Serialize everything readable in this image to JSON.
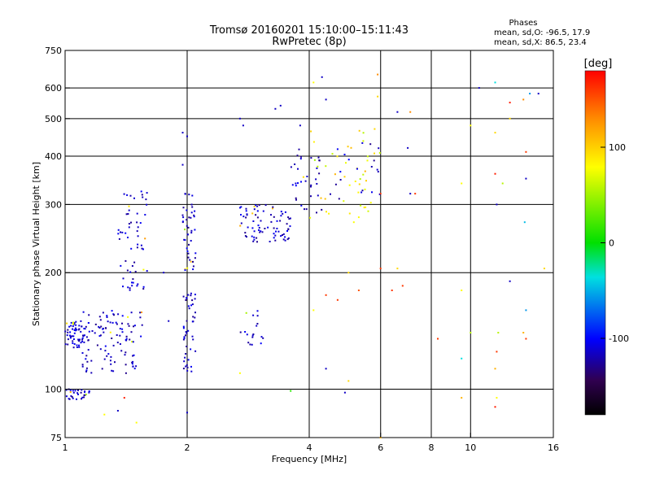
{
  "chart_data": {
    "type": "scatter",
    "title": "Tromsø 20160201 15:10:00–15:11:43",
    "subtitle": "RwPretec (8p)",
    "xlabel": "Frequency [MHz]",
    "ylabel": "Stationary phase Virtual Height [km]",
    "x_scale": "log",
    "y_scale": "log",
    "xlim": [
      1,
      16
    ],
    "ylim": [
      75,
      750
    ],
    "x_ticks": [
      1,
      2,
      4,
      6,
      8,
      10,
      16
    ],
    "x_tick_labels": [
      "1",
      "2",
      "4",
      "6",
      "8",
      "10",
      "16"
    ],
    "x_grid": [
      2,
      4,
      6,
      8,
      10
    ],
    "y_ticks": [
      75,
      100,
      200,
      300,
      400,
      500,
      600,
      750
    ],
    "y_tick_labels": [
      "75",
      "100",
      "200",
      "300",
      "400",
      "500",
      "600",
      "750"
    ],
    "y_grid": [
      100,
      200,
      300,
      400,
      500,
      600
    ],
    "grid": true,
    "phases_box": {
      "title": "Phases",
      "line1": "mean, sd,O:  -96.5, 17.9",
      "line2": "mean, sd,X:  86.5, 23.4"
    },
    "colorbar": {
      "label": "[deg]",
      "range": [
        -180,
        180
      ],
      "ticks": [
        100,
        0,
        -100
      ],
      "tick_labels": [
        "100",
        "0",
        "-100"
      ],
      "colors": [
        "#ff0000",
        "#ff8c00",
        "#ffff00",
        "#00e000",
        "#00e0e0",
        "#0000ff",
        "#300050",
        "#000000"
      ]
    },
    "clusters": [
      {
        "x": [
          1.0,
          1.12
        ],
        "y": [
          128,
          150
        ],
        "phase": -100,
        "n": 60
      },
      {
        "x": [
          1.0,
          1.15
        ],
        "y": [
          94,
          100
        ],
        "phase": -100,
        "n": 30
      },
      {
        "x": [
          1.1,
          1.55
        ],
        "y": [
          110,
          160
        ],
        "phase": -100,
        "n": 110
      },
      {
        "x": [
          1.35,
          1.6
        ],
        "y": [
          180,
          330
        ],
        "phase": -100,
        "n": 60
      },
      {
        "x": [
          1.95,
          2.1
        ],
        "y": [
          110,
          180
        ],
        "phase": -100,
        "n": 45
      },
      {
        "x": [
          1.95,
          2.1
        ],
        "y": [
          200,
          320
        ],
        "phase": -100,
        "n": 45
      },
      {
        "x": [
          2.7,
          3.6
        ],
        "y": [
          240,
          300
        ],
        "phase": -100,
        "n": 80
      },
      {
        "x": [
          2.7,
          3.1
        ],
        "y": [
          130,
          160
        ],
        "phase": -100,
        "n": 18
      },
      {
        "x": [
          3.6,
          4.3
        ],
        "y": [
          280,
          420
        ],
        "phase": -100,
        "n": 35
      },
      {
        "x": [
          4.0,
          5.8
        ],
        "y": [
          270,
          470
        ],
        "phase": 100,
        "n": 40
      },
      {
        "x": [
          4.5,
          6.0
        ],
        "y": [
          310,
          440
        ],
        "phase": -100,
        "n": 22
      }
    ],
    "points": [
      {
        "x": 3.3,
        "y": 530,
        "phase": -100
      },
      {
        "x": 3.4,
        "y": 540,
        "phase": -100
      },
      {
        "x": 2.7,
        "y": 500,
        "phase": -100
      },
      {
        "x": 2.75,
        "y": 480,
        "phase": -100
      },
      {
        "x": 3.8,
        "y": 480,
        "phase": -100
      },
      {
        "x": 4.1,
        "y": 620,
        "phase": 100
      },
      {
        "x": 4.3,
        "y": 640,
        "phase": -100
      },
      {
        "x": 4.4,
        "y": 560,
        "phase": -100
      },
      {
        "x": 5.9,
        "y": 650,
        "phase": 130
      },
      {
        "x": 6.6,
        "y": 520,
        "phase": -100
      },
      {
        "x": 7.1,
        "y": 520,
        "phase": 130
      },
      {
        "x": 7.0,
        "y": 420,
        "phase": -100
      },
      {
        "x": 7.1,
        "y": 320,
        "phase": -100
      },
      {
        "x": 7.3,
        "y": 320,
        "phase": 160
      },
      {
        "x": 10.5,
        "y": 600,
        "phase": -100
      },
      {
        "x": 11.5,
        "y": 620,
        "phase": -20
      },
      {
        "x": 12.5,
        "y": 550,
        "phase": 170
      },
      {
        "x": 13.5,
        "y": 560,
        "phase": 130
      },
      {
        "x": 14.0,
        "y": 580,
        "phase": -40
      },
      {
        "x": 14.7,
        "y": 580,
        "phase": -100
      },
      {
        "x": 11.5,
        "y": 460,
        "phase": 110
      },
      {
        "x": 12.5,
        "y": 500,
        "phase": 110
      },
      {
        "x": 13.7,
        "y": 410,
        "phase": 160
      },
      {
        "x": 13.7,
        "y": 350,
        "phase": -100
      },
      {
        "x": 11.5,
        "y": 360,
        "phase": 170
      },
      {
        "x": 12.0,
        "y": 340,
        "phase": 80
      },
      {
        "x": 11.6,
        "y": 300,
        "phase": -100
      },
      {
        "x": 13.6,
        "y": 270,
        "phase": -30
      },
      {
        "x": 10.0,
        "y": 480,
        "phase": 100
      },
      {
        "x": 9.5,
        "y": 340,
        "phase": 100
      },
      {
        "x": 9.5,
        "y": 180,
        "phase": 100
      },
      {
        "x": 10.0,
        "y": 140,
        "phase": 80
      },
      {
        "x": 9.5,
        "y": 120,
        "phase": -20
      },
      {
        "x": 9.5,
        "y": 95,
        "phase": 120
      },
      {
        "x": 11.6,
        "y": 95,
        "phase": 100
      },
      {
        "x": 11.5,
        "y": 90,
        "phase": 170
      },
      {
        "x": 11.5,
        "y": 113,
        "phase": 120
      },
      {
        "x": 11.6,
        "y": 125,
        "phase": 160
      },
      {
        "x": 12.5,
        "y": 190,
        "phase": -100
      },
      {
        "x": 13.7,
        "y": 160,
        "phase": -40
      },
      {
        "x": 13.5,
        "y": 140,
        "phase": 120
      },
      {
        "x": 13.7,
        "y": 135,
        "phase": 160
      },
      {
        "x": 11.7,
        "y": 140,
        "phase": 80
      },
      {
        "x": 15.2,
        "y": 205,
        "phase": 110
      },
      {
        "x": 8.3,
        "y": 135,
        "phase": 160
      },
      {
        "x": 6.8,
        "y": 185,
        "phase": 160
      },
      {
        "x": 6.4,
        "y": 180,
        "phase": 160
      },
      {
        "x": 6.6,
        "y": 205,
        "phase": 110
      },
      {
        "x": 6.0,
        "y": 205,
        "phase": 160
      },
      {
        "x": 5.3,
        "y": 180,
        "phase": 150
      },
      {
        "x": 5.0,
        "y": 200,
        "phase": 110
      },
      {
        "x": 4.4,
        "y": 175,
        "phase": 160
      },
      {
        "x": 4.7,
        "y": 170,
        "phase": 160
      },
      {
        "x": 4.1,
        "y": 160,
        "phase": 100
      },
      {
        "x": 4.4,
        "y": 113,
        "phase": -100
      },
      {
        "x": 5.0,
        "y": 105,
        "phase": 110
      },
      {
        "x": 4.9,
        "y": 98,
        "phase": -100
      },
      {
        "x": 3.6,
        "y": 99,
        "phase": 40
      },
      {
        "x": 2.7,
        "y": 110,
        "phase": 100
      },
      {
        "x": 2.0,
        "y": 87,
        "phase": -100
      },
      {
        "x": 1.5,
        "y": 82,
        "phase": 100
      },
      {
        "x": 1.25,
        "y": 86,
        "phase": 100
      },
      {
        "x": 1.35,
        "y": 88,
        "phase": -100
      },
      {
        "x": 1.4,
        "y": 95,
        "phase": 170
      },
      {
        "x": 6.0,
        "y": 75,
        "phase": 120
      },
      {
        "x": 5.9,
        "y": 570,
        "phase": 110
      },
      {
        "x": 5.8,
        "y": 470,
        "phase": 110
      },
      {
        "x": 6.0,
        "y": 320,
        "phase": 160
      },
      {
        "x": 1.95,
        "y": 460,
        "phase": -100
      },
      {
        "x": 2.0,
        "y": 450,
        "phase": -100
      },
      {
        "x": 1.95,
        "y": 380,
        "phase": -100
      },
      {
        "x": 1.75,
        "y": 200,
        "phase": -100
      },
      {
        "x": 1.8,
        "y": 150,
        "phase": -100
      }
    ]
  }
}
